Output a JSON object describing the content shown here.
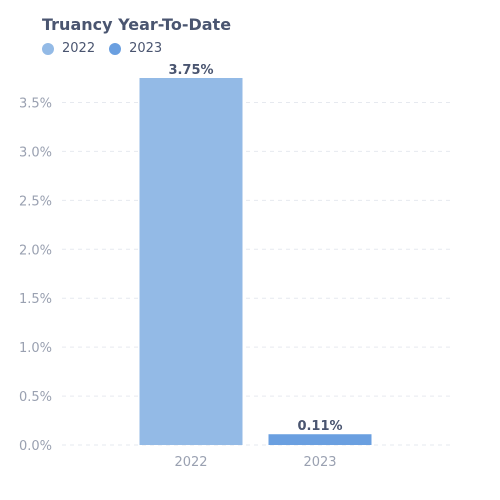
{
  "chart_data": {
    "type": "bar",
    "title": "Truancy Year-To-Date",
    "categories": [
      "2022",
      "2023"
    ],
    "series": [
      {
        "name": "2022",
        "values": [
          3.75,
          null
        ],
        "color": "#93bae6",
        "data_labels": [
          "3.75%",
          null
        ]
      },
      {
        "name": "2023",
        "values": [
          null,
          0.11
        ],
        "color": "#6a9fe0",
        "data_labels": [
          null,
          "0.11%"
        ]
      }
    ],
    "ylim": [
      0,
      3.75
    ],
    "y_ticks": [
      "0.0%",
      "0.5%",
      "1.0%",
      "1.5%",
      "2.0%",
      "2.5%",
      "3.0%",
      "3.5%"
    ],
    "y_tick_values": [
      0,
      0.5,
      1.0,
      1.5,
      2.0,
      2.5,
      3.0,
      3.5
    ],
    "y_unit": "%",
    "grid": true,
    "legend_position": "top-left",
    "xlabel": "",
    "ylabel": ""
  }
}
